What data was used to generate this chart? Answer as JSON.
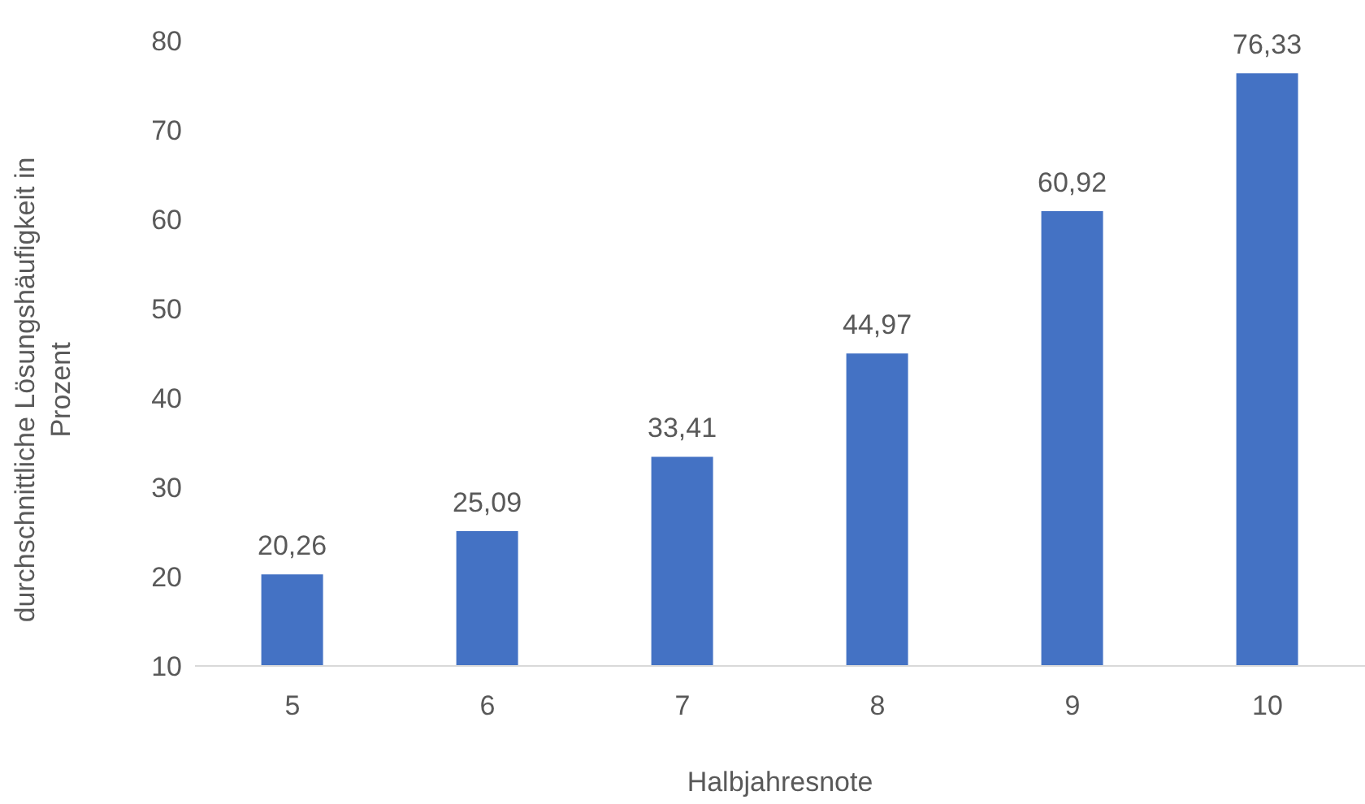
{
  "chart_data": {
    "type": "bar",
    "xlabel": "Halbjahresnote",
    "ylabel": "durchschnittliche Lösungshäufigkeit in Prozent",
    "categories": [
      "5",
      "6",
      "7",
      "8",
      "9",
      "10"
    ],
    "values": [
      20.26,
      25.09,
      33.41,
      44.97,
      60.92,
      76.33
    ],
    "value_labels": [
      "20,26",
      "25,09",
      "33,41",
      "44,97",
      "60,92",
      "76,33"
    ],
    "color": "#4472c4",
    "ylim": [
      10,
      80
    ],
    "yticks": [
      10,
      20,
      30,
      40,
      50,
      60,
      70,
      80
    ],
    "grid": false,
    "legend": false
  }
}
